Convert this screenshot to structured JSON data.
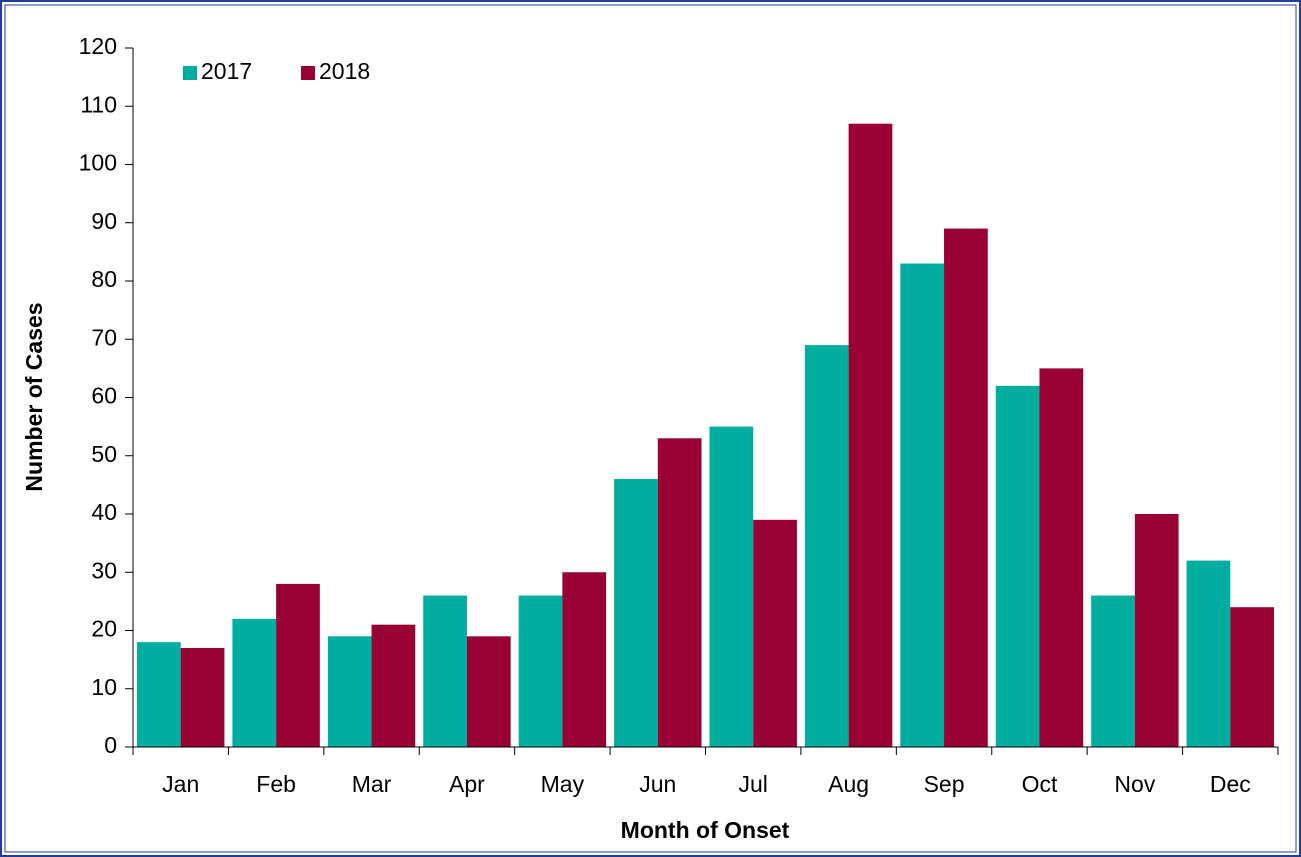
{
  "chart_data": {
    "type": "bar",
    "x_label": "Month of Onset",
    "y_label": "Number of Cases",
    "categories": [
      "Jan",
      "Feb",
      "Mar",
      "Apr",
      "May",
      "Jun",
      "Jul",
      "Aug",
      "Sep",
      "Oct",
      "Nov",
      "Dec"
    ],
    "series": [
      {
        "name": "2017",
        "color": "#00ae9f",
        "values": [
          18,
          22,
          19,
          26,
          26,
          46,
          55,
          69,
          83,
          62,
          26,
          32
        ]
      },
      {
        "name": "2018",
        "color": "#990033",
        "values": [
          17,
          28,
          21,
          19,
          30,
          53,
          39,
          107,
          89,
          65,
          40,
          24
        ]
      }
    ],
    "ylim": [
      0,
      120
    ],
    "yticks": [
      0,
      10,
      20,
      30,
      40,
      50,
      60,
      70,
      80,
      90,
      100,
      110,
      120
    ],
    "legend": "top-left"
  }
}
